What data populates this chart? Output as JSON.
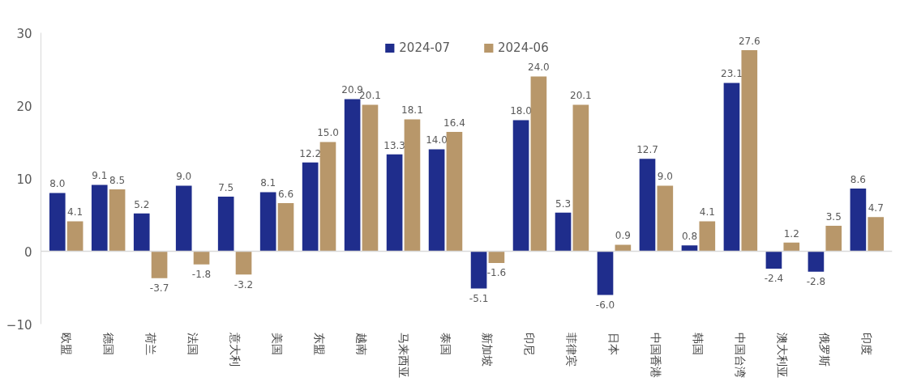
{
  "chart_data": {
    "type": "bar",
    "categories": [
      "欧盟",
      "德国",
      "荷兰",
      "法国",
      "意大利",
      "美国",
      "东盟",
      "越南",
      "马来西亚",
      "泰国",
      "新加坡",
      "印尼",
      "菲律宾",
      "日本",
      "中国香港",
      "韩国",
      "中国台湾",
      "澳大利亚",
      "俄罗斯",
      "印度"
    ],
    "series": [
      {
        "name": "2024-07",
        "color": "#1f2d8c",
        "values": [
          8.0,
          9.1,
          5.2,
          9.0,
          7.5,
          8.1,
          12.2,
          20.9,
          13.3,
          14.0,
          -5.1,
          18.0,
          5.3,
          -6.0,
          12.7,
          0.8,
          23.1,
          -2.4,
          -2.8,
          8.6
        ],
        "value_labels": [
          "8.0",
          "9.1",
          "5.2",
          "9.0",
          "7.5",
          "8.1",
          "12.2",
          "20.9",
          "13.3",
          "14.0",
          "-5.1",
          "18.0",
          "5.3",
          "-6.0",
          "12.7",
          "0.8",
          "23.1",
          "-2.4",
          "-2.8",
          "8.6"
        ]
      },
      {
        "name": "2024-06",
        "color": "#b8976a",
        "values": [
          4.1,
          8.5,
          -3.7,
          -1.8,
          -3.2,
          6.6,
          15.0,
          20.1,
          18.1,
          16.4,
          -1.6,
          24.0,
          20.1,
          0.9,
          9.0,
          4.1,
          27.6,
          1.2,
          3.5,
          4.7
        ],
        "value_labels": [
          "4.1",
          "8.5",
          "-3.7",
          "-1.8",
          "-3.2",
          "6.6",
          "15.0",
          "20.1",
          "18.1",
          "16.4",
          "-1.6",
          "24.0",
          "20.1",
          "0.9",
          "9.0",
          "4.1",
          "27.6",
          "1.2",
          "3.5",
          "4.7"
        ]
      }
    ],
    "ylim": [
      -10,
      30
    ],
    "yticks": [
      -10,
      0,
      10,
      20,
      30
    ],
    "ref_lines": [
      {
        "axis": "y",
        "value": 0,
        "color": "#d9d9d9"
      }
    ],
    "legend": "top"
  }
}
